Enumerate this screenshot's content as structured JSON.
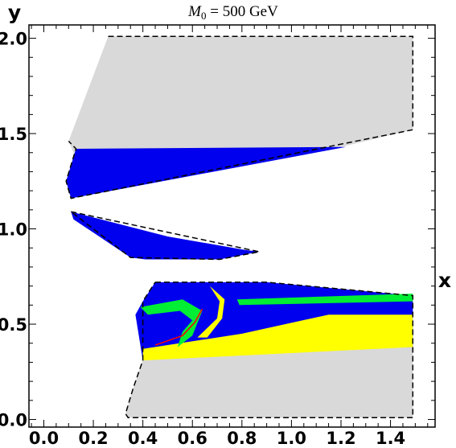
{
  "chart_data": {
    "type": "area",
    "title": "M_0 = 500 GeV",
    "title_parts": {
      "symbol": "M",
      "subscript": "0",
      "rest": " = 500 GeV"
    },
    "xlabel": "x",
    "ylabel": "y",
    "xlim": [
      -0.06,
      1.58
    ],
    "ylim": [
      -0.04,
      2.07
    ],
    "x_ticks": [
      0.0,
      0.2,
      0.4,
      0.6,
      0.8,
      1.0,
      1.2,
      1.4
    ],
    "x_tick_labels": [
      "0.0",
      "0.2",
      "0.4",
      "0.6",
      "0.8",
      "1.0",
      "1.2",
      "1.4"
    ],
    "y_ticks": [
      0.0,
      0.5,
      1.0,
      1.5,
      2.0
    ],
    "y_tick_labels": [
      "0.0",
      "0.5",
      "1.0",
      "1.5",
      "2.0"
    ],
    "grid": false,
    "colors": {
      "gray": "#d9d9d9",
      "blue": "#0000ee",
      "yellow": "#ffff00",
      "green": "#00ee33",
      "red": "#ff0000",
      "boundary": "#000000"
    },
    "regions": [
      {
        "name": "gray-upper",
        "color": "gray",
        "points": [
          [
            0.26,
            2.01
          ],
          [
            1.49,
            2.01
          ],
          [
            1.49,
            1.52
          ],
          [
            1.17,
            1.42
          ],
          [
            0.13,
            1.41
          ],
          [
            0.13,
            1.37
          ],
          [
            0.1,
            1.46
          ]
        ]
      },
      {
        "name": "blue-upper",
        "color": "blue",
        "points": [
          [
            0.13,
            1.42
          ],
          [
            1.22,
            1.43
          ],
          [
            0.11,
            1.16
          ],
          [
            0.09,
            1.25
          ]
        ]
      },
      {
        "name": "blue-middle",
        "color": "blue",
        "points": [
          [
            0.11,
            1.09
          ],
          [
            0.5,
            0.96
          ],
          [
            0.81,
            0.89
          ],
          [
            0.87,
            0.88
          ],
          [
            0.71,
            0.84
          ],
          [
            0.5,
            0.84
          ],
          [
            0.41,
            0.84
          ],
          [
            0.35,
            0.85
          ],
          [
            0.12,
            1.05
          ]
        ]
      },
      {
        "name": "blue-lower",
        "color": "blue",
        "points": [
          [
            0.45,
            0.72
          ],
          [
            0.9,
            0.72
          ],
          [
            1.49,
            0.65
          ],
          [
            1.49,
            0.38
          ],
          [
            0.4,
            0.31
          ],
          [
            0.37,
            0.55
          ],
          [
            0.4,
            0.62
          ]
        ]
      },
      {
        "name": "yellow-lower",
        "color": "yellow",
        "points": [
          [
            1.49,
            0.55
          ],
          [
            1.15,
            0.55
          ],
          [
            0.8,
            0.45
          ],
          [
            0.4,
            0.37
          ],
          [
            0.4,
            0.31
          ],
          [
            0.6,
            0.3
          ],
          [
            1.49,
            0.38
          ]
        ]
      },
      {
        "name": "green-band-main",
        "color": "green",
        "points": [
          [
            0.78,
            0.63
          ],
          [
            1.49,
            0.66
          ],
          [
            1.49,
            0.62
          ],
          [
            0.79,
            0.6
          ]
        ]
      },
      {
        "name": "green-arc",
        "color": "green",
        "points": [
          [
            0.39,
            0.59
          ],
          [
            0.56,
            0.63
          ],
          [
            0.64,
            0.57
          ],
          [
            0.6,
            0.44
          ],
          [
            0.54,
            0.38
          ],
          [
            0.56,
            0.46
          ],
          [
            0.6,
            0.52
          ],
          [
            0.55,
            0.57
          ],
          [
            0.42,
            0.55
          ]
        ]
      },
      {
        "name": "yellow-arc",
        "color": "yellow",
        "points": [
          [
            0.67,
            0.7
          ],
          [
            0.73,
            0.63
          ],
          [
            0.72,
            0.53
          ],
          [
            0.66,
            0.43
          ],
          [
            0.62,
            0.43
          ],
          [
            0.7,
            0.53
          ],
          [
            0.71,
            0.62
          ]
        ]
      },
      {
        "name": "gray-lower",
        "color": "gray",
        "points": [
          [
            0.4,
            0.31
          ],
          [
            1.49,
            0.38
          ],
          [
            1.49,
            0.01
          ],
          [
            0.34,
            0.01
          ],
          [
            0.33,
            0.03
          ],
          [
            0.36,
            0.16
          ]
        ]
      }
    ],
    "boundaries": [
      {
        "name": "outer-upper",
        "style": "dashed",
        "points": [
          [
            0.26,
            2.01
          ],
          [
            1.49,
            2.01
          ],
          [
            1.49,
            1.52
          ],
          [
            0.11,
            1.16
          ],
          [
            0.09,
            1.25
          ],
          [
            0.13,
            1.42
          ],
          [
            0.1,
            1.46
          ]
        ]
      },
      {
        "name": "outer-middle",
        "style": "dashed",
        "points": [
          [
            0.11,
            1.09
          ],
          [
            0.87,
            0.88
          ],
          [
            0.71,
            0.84
          ],
          [
            0.35,
            0.85
          ],
          [
            0.11,
            1.09
          ]
        ]
      },
      {
        "name": "outer-lower",
        "style": "dashed",
        "points": [
          [
            0.45,
            0.72
          ],
          [
            0.9,
            0.72
          ],
          [
            1.49,
            0.65
          ],
          [
            1.49,
            0.01
          ],
          [
            0.34,
            0.01
          ],
          [
            0.33,
            0.03
          ],
          [
            0.36,
            0.16
          ],
          [
            0.4,
            0.31
          ],
          [
            0.4,
            0.62
          ],
          [
            0.45,
            0.72
          ]
        ]
      }
    ],
    "curves": [
      {
        "name": "red-curve",
        "color": "red",
        "points": [
          [
            0.45,
            0.39
          ],
          [
            0.56,
            0.44
          ],
          [
            0.61,
            0.51
          ],
          [
            0.64,
            0.58
          ]
        ]
      }
    ]
  }
}
